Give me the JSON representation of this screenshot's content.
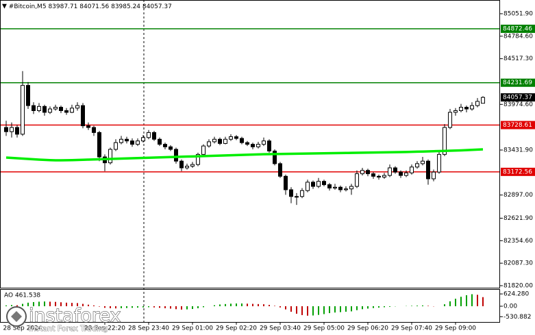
{
  "chart_data": {
    "type": "candlestick",
    "symbol": "#Bitcoin,M5",
    "ylim": [
      81795.5,
      85214.7
    ],
    "yticks": [
      {
        "value": 85051.9,
        "label": "85051.90"
      },
      {
        "value": 84784.6,
        "label": "84784.60"
      },
      {
        "value": 84517.3,
        "label": "84517.30"
      },
      {
        "value": 83974.6,
        "label": "83974.60"
      },
      {
        "value": 83431.9,
        "label": "83431.90"
      },
      {
        "value": 82897,
        "label": "82897.00"
      },
      {
        "value": 82621.9,
        "label": "82621.90"
      },
      {
        "value": 82354.6,
        "label": "82354.60"
      },
      {
        "value": 82087.3,
        "label": "82087.30"
      },
      {
        "value": 81820,
        "label": "81820.00"
      }
    ],
    "categories": [
      null,
      null,
      null,
      "28 Sep 2024",
      null,
      null,
      null,
      null,
      null,
      null,
      null,
      null,
      null,
      null,
      null,
      null,
      null,
      null,
      "28 Sep 22:20",
      null,
      null,
      null,
      null,
      null,
      null,
      null,
      "28 Sep 23:40",
      null,
      null,
      null,
      null,
      null,
      null,
      null,
      "29 Sep 01:00",
      null,
      null,
      null,
      null,
      null,
      null,
      null,
      "29 Sep 02:20",
      null,
      null,
      null,
      null,
      null,
      null,
      null,
      "29 Sep 03:40",
      null,
      null,
      null,
      null,
      null,
      null,
      null,
      "29 Sep 05:00",
      null,
      null,
      null,
      null,
      null,
      null,
      null,
      "29 Sep 06:20",
      null,
      null,
      null,
      null,
      null,
      null,
      null,
      "29 Sep 07:40",
      null,
      null,
      null,
      null,
      null,
      null,
      null,
      "29 Sep 09:00",
      null,
      null,
      null,
      null,
      null
    ],
    "open": [
      83700,
      83650,
      83700,
      83620,
      84200,
      83960,
      83900,
      83950,
      83880,
      83920,
      83940,
      83900,
      83880,
      83930,
      83960,
      83720,
      83700,
      83640,
      83350,
      83280,
      83440,
      83520,
      83560,
      83540,
      83500,
      83540,
      83580,
      83640,
      83560,
      83500,
      83470,
      83440,
      83300,
      83220,
      83240,
      83260,
      83380,
      83480,
      83530,
      83560,
      83510,
      83560,
      83590,
      83570,
      83520,
      83500,
      83470,
      83500,
      83540,
      83420,
      83270,
      83120,
      82960,
      82880,
      82880,
      82950,
      83050,
      83000,
      83060,
      83020,
      82980,
      82990,
      82960,
      82970,
      83000,
      83150,
      83190,
      83150,
      83120,
      83110,
      83130,
      83220,
      83170,
      83130,
      83160,
      83230,
      83270,
      83300,
      83090,
      83170,
      83380,
      83700,
      83880,
      83900,
      83940,
      83920,
      83960,
      83987.71
    ],
    "high": [
      83780,
      83760,
      83730,
      84370,
      84240,
      84000,
      83990,
      83970,
      83950,
      83970,
      83960,
      83930,
      83970,
      84000,
      83990,
      83760,
      83720,
      83660,
      83380,
      83460,
      83560,
      83600,
      83590,
      83570,
      83570,
      83610,
      83670,
      83660,
      83580,
      83520,
      83490,
      83460,
      83320,
      83270,
      83290,
      83400,
      83500,
      83560,
      83590,
      83580,
      83590,
      83620,
      83610,
      83590,
      83540,
      83520,
      83530,
      83580,
      83560,
      83440,
      83290,
      83140,
      82990,
      82920,
      82980,
      83080,
      83070,
      83100,
      83080,
      83040,
      83030,
      83010,
      83000,
      83030,
      83190,
      83220,
      83210,
      83170,
      83140,
      83160,
      83260,
      83240,
      83190,
      83190,
      83260,
      83300,
      83350,
      83320,
      83200,
      83420,
      83740,
      83920,
      83930,
      83980,
      83960,
      84000,
      84050,
      84071.56
    ],
    "low": [
      83600,
      83580,
      83580,
      83600,
      83920,
      83860,
      83880,
      83840,
      83860,
      83900,
      83870,
      83850,
      83870,
      83900,
      83690,
      83670,
      83600,
      83300,
      83180,
      83260,
      83420,
      83500,
      83510,
      83470,
      83480,
      83520,
      83560,
      83540,
      83480,
      83440,
      83420,
      83270,
      83180,
      83200,
      83220,
      83240,
      83360,
      83460,
      83510,
      83490,
      83500,
      83540,
      83550,
      83500,
      83480,
      83440,
      83450,
      83480,
      83400,
      83250,
      83100,
      82900,
      82800,
      82780,
      82860,
      82930,
      82970,
      82980,
      83000,
      82950,
      82960,
      82930,
      82940,
      82900,
      82980,
      83130,
      83120,
      83090,
      83080,
      83090,
      83110,
      83150,
      83100,
      83110,
      83140,
      83210,
      83250,
      83020,
      83060,
      83150,
      83360,
      83680,
      83840,
      83880,
      83880,
      83900,
      83940,
      83985.24
    ],
    "close": [
      83650,
      83700,
      83620,
      84200,
      83960,
      83900,
      83950,
      83880,
      83920,
      83940,
      83900,
      83880,
      83930,
      83960,
      83720,
      83700,
      83640,
      83350,
      83280,
      83440,
      83520,
      83560,
      83540,
      83500,
      83540,
      83580,
      83640,
      83560,
      83500,
      83470,
      83440,
      83300,
      83220,
      83240,
      83260,
      83380,
      83480,
      83530,
      83560,
      83510,
      83560,
      83590,
      83570,
      83520,
      83500,
      83470,
      83500,
      83540,
      83420,
      83270,
      83120,
      82960,
      82880,
      82880,
      82950,
      83050,
      83000,
      83060,
      83020,
      82980,
      82990,
      82960,
      82970,
      83000,
      83150,
      83190,
      83150,
      83120,
      83110,
      83130,
      83220,
      83170,
      83130,
      83160,
      83230,
      83270,
      83300,
      83090,
      83170,
      83380,
      83700,
      83880,
      83900,
      83940,
      83920,
      83960,
      84010,
      84057.37
    ],
    "ma": {
      "color": "#00ee00",
      "values": [
        83342,
        83338,
        83334,
        83330,
        83326,
        83322,
        83318,
        83315,
        83312,
        83310,
        83310,
        83311,
        83312,
        83314,
        83316,
        83318,
        83320,
        83322,
        83324,
        83326,
        83328,
        83330,
        83332,
        83334,
        83336,
        83338,
        83340,
        83342,
        83344,
        83346,
        83348,
        83350,
        83352,
        83354,
        83356,
        83358,
        83360,
        83362,
        83364,
        83366,
        83368,
        83370,
        83372,
        83374,
        83376,
        83378,
        83380,
        83382,
        83383,
        83384,
        83385,
        83386,
        83387,
        83388,
        83389,
        83390,
        83391,
        83392,
        83393,
        83394,
        83395,
        83396,
        83397,
        83398,
        83399,
        83400,
        83401,
        83402,
        83403,
        83404,
        83405,
        83406,
        83407,
        83408,
        83410,
        83412,
        83414,
        83416,
        83418,
        83420,
        83422,
        83424,
        83426,
        83428,
        83431,
        83434,
        83437,
        83440
      ]
    },
    "levels": [
      {
        "value": 84872.46,
        "color": "#008000"
      },
      {
        "value": 84231.69,
        "color": "#008000"
      },
      {
        "value": 83728.61,
        "color": "#e00000"
      },
      {
        "value": 83172.56,
        "color": "#e00000"
      }
    ],
    "ao": {
      "label": "AO 461.538",
      "up_color": "#00a000",
      "down_color": "#c00000",
      "ylim": [
        -800,
        800
      ],
      "yticks": [
        {
          "value": 624.28,
          "label": "624.280"
        },
        {
          "value": 0,
          "label": "0.00"
        },
        {
          "value": -530.882,
          "label": "-530.882"
        }
      ],
      "values": [
        40,
        60,
        50,
        120,
        180,
        210,
        230,
        240,
        230,
        220,
        200,
        180,
        170,
        160,
        120,
        80,
        40,
        -20,
        -80,
        -100,
        -110,
        -100,
        -90,
        -80,
        -70,
        -60,
        -50,
        -60,
        -80,
        -100,
        -120,
        -150,
        -170,
        -160,
        -140,
        -100,
        -50,
        0,
        50,
        90,
        110,
        130,
        140,
        140,
        130,
        120,
        110,
        100,
        70,
        20,
        -60,
        -160,
        -280,
        -380,
        -450,
        -480,
        -470,
        -440,
        -400,
        -350,
        -320,
        -300,
        -280,
        -260,
        -200,
        -150,
        -120,
        -90,
        -70,
        -50,
        -30,
        -10,
        0,
        10,
        20,
        30,
        40,
        20,
        -10,
        0,
        100,
        250,
        380,
        480,
        560,
        610,
        580,
        461.538
      ]
    },
    "watermark": {
      "brand": "instaforex",
      "tagline": "Instant Forex Trading"
    }
  }
}
